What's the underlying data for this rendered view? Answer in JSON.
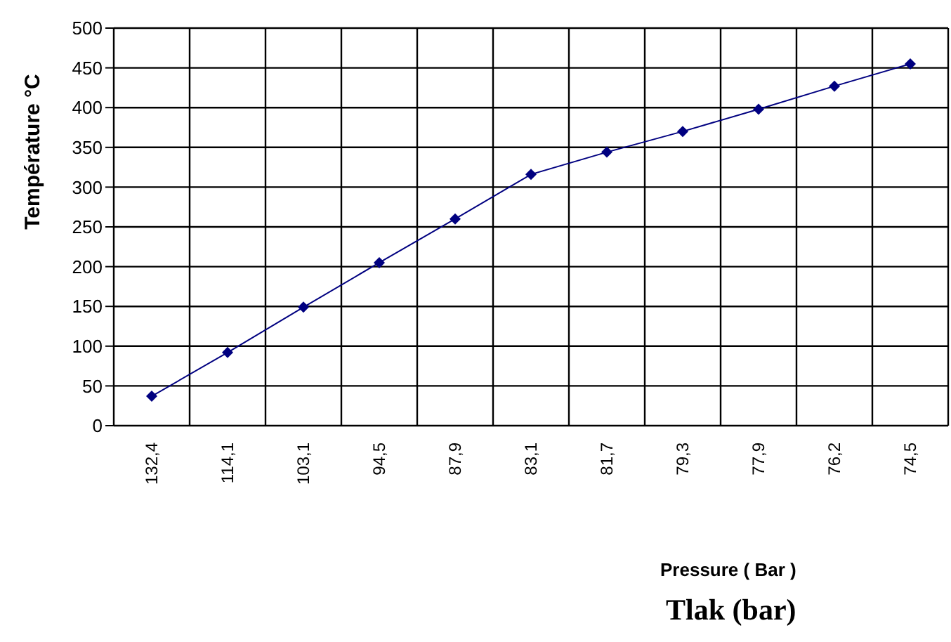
{
  "chart_data": {
    "type": "line",
    "ylabel": "Température °C",
    "xlabel": "Pressure ( Bar )",
    "annotations": [
      "Tlak (bar)"
    ],
    "categories": [
      "132,4",
      "114,1",
      "103,1",
      "94,5",
      "87,9",
      "83,1",
      "81,7",
      "79,3",
      "77,9",
      "76,2",
      "74,5"
    ],
    "series": [
      {
        "color": "#000080",
        "values": [
          37,
          92,
          149,
          205,
          260,
          316,
          344,
          370,
          398,
          427,
          455
        ]
      }
    ],
    "ylim": [
      0,
      500
    ],
    "yticks": [
      0,
      50,
      100,
      150,
      200,
      250,
      300,
      350,
      400,
      450,
      500
    ],
    "grid": true,
    "legend": false,
    "marker": "diamond"
  }
}
